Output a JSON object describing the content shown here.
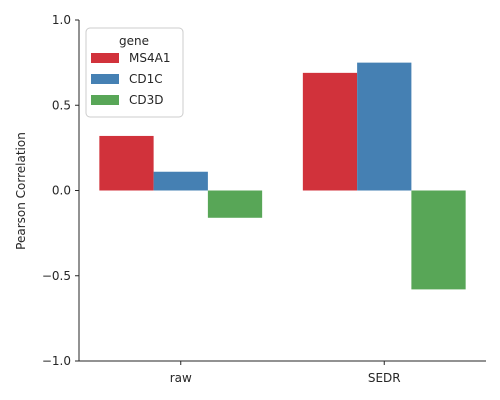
{
  "chart_data": {
    "type": "bar",
    "ylabel": "Pearson Correlation",
    "ylim": [
      -1.0,
      1.0
    ],
    "yticks": [
      -1.0,
      -0.5,
      0.0,
      0.5,
      1.0
    ],
    "ytick_labels": [
      "−1.0",
      "−0.5",
      "0.0",
      "0.5",
      "1.0"
    ],
    "categories": [
      "raw",
      "SEDR"
    ],
    "legend_title": "gene",
    "legend_position": "top-left",
    "grid": false,
    "series": [
      {
        "name": "MS4A1",
        "color": "#d1323b",
        "values": [
          0.32,
          0.69
        ]
      },
      {
        "name": "CD1C",
        "color": "#4580b3",
        "values": [
          0.11,
          0.75
        ]
      },
      {
        "name": "CD3D",
        "color": "#58a657",
        "values": [
          -0.16,
          -0.58
        ]
      }
    ]
  }
}
